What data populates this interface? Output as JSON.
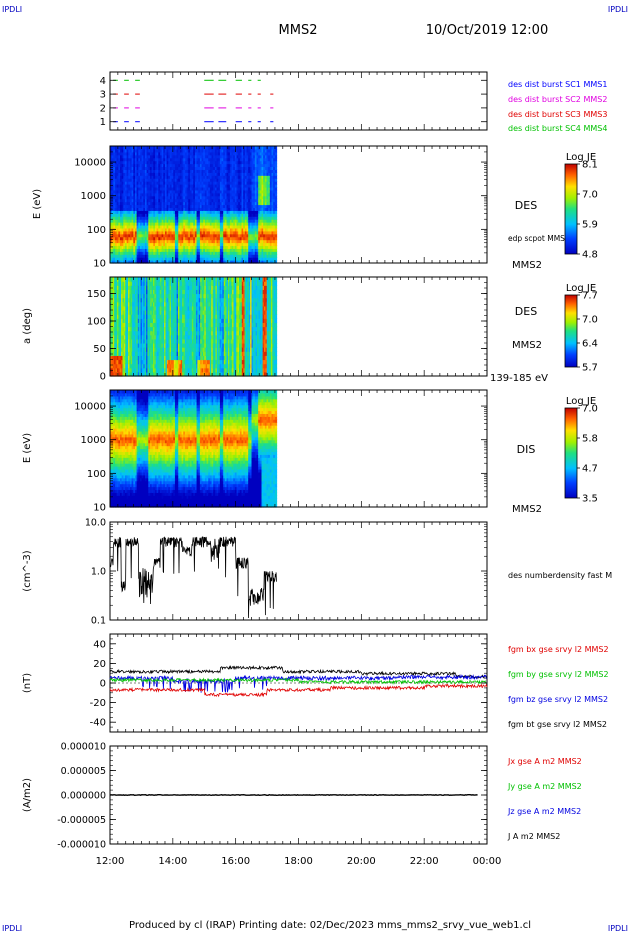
{
  "header": {
    "corner_left_top": "IPDLI",
    "corner_right_top": "IPDLI",
    "corner_left_bottom": "IPDLI",
    "corner_right_bottom": "IPDLI",
    "title": "MMS2",
    "datetime": "10/Oct/2019 12:00"
  },
  "footer": {
    "text": "Produced by cl (IRAP)   Printing date: 02/Dec/2023   mms_mms2_srvy_vue_web1.cl"
  },
  "chart_data": [
    {
      "type": "scatter",
      "panel": "availability",
      "yticks": [
        "1",
        "2",
        "3",
        "4"
      ],
      "legend": [
        {
          "label": "des dist burst SC1 MMS1",
          "color": "#0000ff"
        },
        {
          "label": "des dist burst SC2 MMS2",
          "color": "#e000e0"
        },
        {
          "label": "des dist burst SC3 MMS3",
          "color": "#e00000"
        },
        {
          "label": "des dist burst SC4 MMS4",
          "color": "#00c000"
        }
      ]
    },
    {
      "type": "heatmap",
      "panel": "des-energy",
      "ylabel": "E (eV)",
      "ylim": [
        10,
        30000
      ],
      "yscale": "log",
      "yticks": [
        "10",
        "100",
        "1000",
        "10000"
      ],
      "right_labels": [
        "DES",
        "edp scpot MMS2",
        "MMS2"
      ],
      "colorbar": {
        "title": "Log JE",
        "ticks": [
          "8.1",
          "7.0",
          "5.9",
          "4.8"
        ],
        "range": [
          4.8,
          8.1
        ]
      },
      "data_end_hour": 17.3
    },
    {
      "type": "heatmap",
      "panel": "des-pitch",
      "ylabel": "a (deg)",
      "ylim": [
        0,
        180
      ],
      "yticks": [
        "0",
        "50",
        "100",
        "150"
      ],
      "right_labels": [
        "DES",
        "MMS2",
        "139-185 eV"
      ],
      "colorbar": {
        "title": "Log JE",
        "ticks": [
          "7.7",
          "7.0",
          "6.4",
          "5.7"
        ],
        "range": [
          5.7,
          7.7
        ]
      },
      "data_end_hour": 17.3
    },
    {
      "type": "heatmap",
      "panel": "dis-energy",
      "ylabel": "E (eV)",
      "ylim": [
        10,
        30000
      ],
      "yscale": "log",
      "yticks": [
        "10",
        "100",
        "1000",
        "10000"
      ],
      "right_labels": [
        "DIS",
        "MMS2"
      ],
      "colorbar": {
        "title": "Log JE",
        "ticks": [
          "7.0",
          "5.8",
          "4.7",
          "3.5"
        ],
        "range": [
          3.5,
          7.0
        ]
      },
      "data_end_hour": 17.3
    },
    {
      "type": "line",
      "panel": "density",
      "ylabel": "(cm^-3)",
      "ylim": [
        0.1,
        10
      ],
      "yscale": "log",
      "yticks": [
        "0.1",
        "1.0",
        "10.0"
      ],
      "series": [
        {
          "name": "des numberdensity fast M",
          "color": "#000000"
        }
      ]
    },
    {
      "type": "line",
      "panel": "bfield",
      "ylabel": "(nT)",
      "ylim": [
        -50,
        50
      ],
      "yticks": [
        "-40",
        "-20",
        "0",
        "20",
        "40"
      ],
      "series": [
        {
          "name": "fgm bx gse srvy l2 MMS2",
          "color": "#e00000"
        },
        {
          "name": "fgm by gse srvy l2 MMS2",
          "color": "#00c000"
        },
        {
          "name": "fgm bz gse srvy l2 MMS2",
          "color": "#0000e0"
        },
        {
          "name": "fgm bt gse srvy l2 MMS2",
          "color": "#000000"
        }
      ]
    },
    {
      "type": "line",
      "panel": "current",
      "ylabel": "(A/m2)",
      "ylim": [
        -1e-05,
        1e-05
      ],
      "yticks": [
        "-0.000010",
        "-0.000005",
        "0.000000",
        "0.000005",
        "0.000010"
      ],
      "series": [
        {
          "name": "Jx gse A m2 MMS2",
          "color": "#e00000"
        },
        {
          "name": "Jy gse A m2 MMS2",
          "color": "#00c000"
        },
        {
          "name": "Jz gse A m2 MMS2",
          "color": "#0000e0"
        },
        {
          "name": "J A m2 MMS2",
          "color": "#000000"
        }
      ]
    }
  ],
  "xaxis": {
    "xlim_hours": [
      12,
      24
    ],
    "ticks": [
      "12:00",
      "14:00",
      "16:00",
      "18:00",
      "20:00",
      "22:00",
      "00:00"
    ]
  }
}
